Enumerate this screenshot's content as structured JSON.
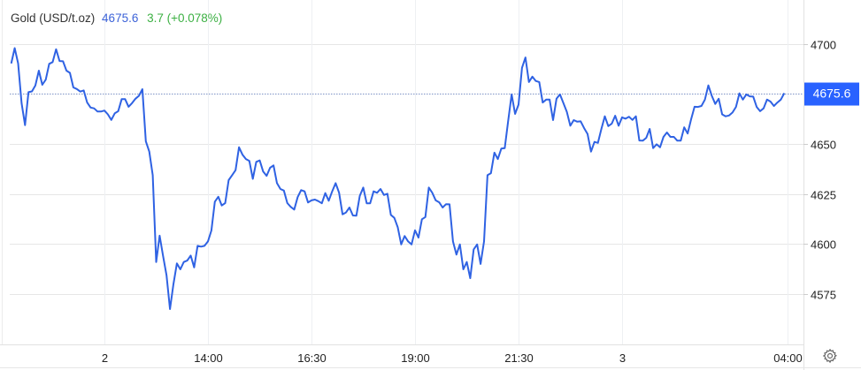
{
  "header": {
    "symbol": "Gold (USD/t.oz)",
    "price": "4675.6",
    "change": "3.7 (+0.078%)"
  },
  "colors": {
    "line": "#2f62e3",
    "price_label_bg": "#2962ff",
    "price_text": "#3d63d8",
    "change_text": "#3cb043",
    "grid": "#e6e6e6"
  },
  "settings_icon": "gear-icon",
  "chart_data": {
    "type": "line",
    "title": "",
    "xlabel": "",
    "ylabel": "",
    "ylim": [
      4549.7,
      4722.3
    ],
    "grid": true,
    "y_axis_side": "right",
    "yticks": [
      4575,
      4600,
      4625,
      4650,
      4675,
      4700
    ],
    "ytick_labels": [
      "4575",
      "4600",
      "4625",
      "4650",
      "",
      "4700"
    ],
    "xticks": [
      {
        "label": "2",
        "at": "2 11:30"
      },
      {
        "label": "14:00",
        "at": "2 14:00"
      },
      {
        "label": "16:30",
        "at": "2 16:30"
      },
      {
        "label": "19:00",
        "at": "2 19:00"
      },
      {
        "label": "21:30",
        "at": "2 21:30"
      },
      {
        "label": "3",
        "at": "3 00:00"
      },
      {
        "label": "04:00",
        "at": "3 04:00"
      }
    ],
    "last_value": 4675.6,
    "last_value_label": "4675.6",
    "x": [
      "2 09:15",
      "2 09:20",
      "2 09:25",
      "2 09:30",
      "2 09:35",
      "2 09:40",
      "2 09:45",
      "2 09:50",
      "2 09:55",
      "2 10:00",
      "2 10:05",
      "2 10:10",
      "2 10:15",
      "2 10:20",
      "2 10:25",
      "2 10:30",
      "2 10:35",
      "2 10:40",
      "2 10:45",
      "2 10:50",
      "2 10:55",
      "2 11:00",
      "2 11:05",
      "2 11:10",
      "2 11:15",
      "2 11:20",
      "2 11:25",
      "2 11:30",
      "2 11:35",
      "2 11:40",
      "2 11:45",
      "2 11:50",
      "2 11:55",
      "2 12:00",
      "2 12:05",
      "2 12:10",
      "2 12:15",
      "2 12:20",
      "2 12:25",
      "2 12:30",
      "2 12:35",
      "2 12:40",
      "2 12:45",
      "2 12:50",
      "2 12:55",
      "2 13:00",
      "2 13:05",
      "2 13:10",
      "2 13:15",
      "2 13:20",
      "2 13:25",
      "2 13:30",
      "2 13:35",
      "2 13:40",
      "2 13:45",
      "2 13:50",
      "2 13:55",
      "2 14:00",
      "2 14:05",
      "2 14:10",
      "2 14:15",
      "2 14:20",
      "2 14:25",
      "2 14:30",
      "2 14:35",
      "2 14:40",
      "2 14:45",
      "2 14:50",
      "2 14:55",
      "2 15:00",
      "2 15:05",
      "2 15:10",
      "2 15:15",
      "2 15:20",
      "2 15:25",
      "2 15:30",
      "2 15:35",
      "2 15:40",
      "2 15:45",
      "2 15:50",
      "2 15:55",
      "2 16:00",
      "2 16:05",
      "2 16:10",
      "2 16:15",
      "2 16:20",
      "2 16:25",
      "2 16:30",
      "2 16:35",
      "2 16:40",
      "2 16:45",
      "2 16:50",
      "2 16:55",
      "2 17:00",
      "2 17:05",
      "2 17:10",
      "2 17:15",
      "2 17:20",
      "2 17:25",
      "2 17:30",
      "2 17:35",
      "2 17:40",
      "2 17:45",
      "2 17:50",
      "2 17:55",
      "2 18:00",
      "2 18:05",
      "2 18:10",
      "2 18:15",
      "2 18:20",
      "2 18:25",
      "2 18:30",
      "2 18:35",
      "2 18:40",
      "2 18:45",
      "2 18:50",
      "2 18:55",
      "2 19:00",
      "2 19:05",
      "2 19:10",
      "2 19:15",
      "2 19:20",
      "2 19:25",
      "2 19:30",
      "2 19:35",
      "2 19:40",
      "2 19:45",
      "2 19:50",
      "2 19:55",
      "2 20:00",
      "2 20:05",
      "2 20:10",
      "2 20:15",
      "2 20:20",
      "2 20:25",
      "2 20:30",
      "2 20:35",
      "2 20:40",
      "2 20:45",
      "2 20:50",
      "2 20:55",
      "2 21:00",
      "2 21:05",
      "2 21:10",
      "2 21:15",
      "2 21:20",
      "2 21:25",
      "2 21:30",
      "2 21:35",
      "2 21:40",
      "2 21:45",
      "2 21:50",
      "2 21:55",
      "2 22:00",
      "2 22:05",
      "2 22:10",
      "2 22:15",
      "2 22:20",
      "2 22:25",
      "2 22:30",
      "2 22:35",
      "2 22:40",
      "2 22:45",
      "2 22:50",
      "2 22:55",
      "2 23:00",
      "2 23:05",
      "2 23:10",
      "2 23:15",
      "2 23:20",
      "2 23:25",
      "2 23:30",
      "2 23:35",
      "2 23:40",
      "2 23:45",
      "2 23:50",
      "2 23:55",
      "3 00:00",
      "3 00:05",
      "3 00:10",
      "3 00:15",
      "3 00:20",
      "3 00:25",
      "3 00:30",
      "3 00:35",
      "3 00:40",
      "3 00:45",
      "3 00:50",
      "3 00:55",
      "3 01:00",
      "3 01:05",
      "3 01:10",
      "3 01:15",
      "3 01:20",
      "3 01:25",
      "3 01:30",
      "3 01:35",
      "3 01:40",
      "3 01:45",
      "3 01:50",
      "3 01:55",
      "3 02:00",
      "3 02:05",
      "3 02:10",
      "3 02:15",
      "3 02:20",
      "3 02:25",
      "3 02:30",
      "3 02:35",
      "3 02:40",
      "3 02:45",
      "3 02:50",
      "3 02:55",
      "3 03:00",
      "3 03:05",
      "3 03:10",
      "3 03:15",
      "3 03:20",
      "3 03:25",
      "3 03:30",
      "3 03:35",
      "3 03:40",
      "3 03:45",
      "3 03:50",
      "3 03:55"
    ],
    "series": [
      {
        "values": [
          4690.5,
          4698.2,
          4690.5,
          4670.6,
          4659.6,
          4676.1,
          4676.5,
          4679.5,
          4686.9,
          4679.8,
          4682.4,
          4690.3,
          4691.2,
          4697.6,
          4691.7,
          4691.6,
          4686.9,
          4685.8,
          4678.5,
          4677.7,
          4676.4,
          4677.0,
          4670.9,
          4668.4,
          4668.0,
          4666.4,
          4666.4,
          4666.9,
          4665.0,
          4662.2,
          4665.5,
          4666.6,
          4672.6,
          4672.6,
          4668.8,
          4670.6,
          4672.8,
          4674.3,
          4677.6,
          4651.5,
          4646.3,
          4634.5,
          4591.0,
          4604.2,
          4594.0,
          4584.3,
          4567.4,
          4579.9,
          4590.3,
          4587.3,
          4591.0,
          4591.7,
          4594.2,
          4588.3,
          4599.1,
          4598.7,
          4599.1,
          4601.3,
          4606.8,
          4621.2,
          4623.7,
          4619.3,
          4620.5,
          4632.0,
          4634.5,
          4637.0,
          4648.5,
          4644.8,
          4642.6,
          4641.6,
          4632.7,
          4641.2,
          4641.9,
          4636.3,
          4634.2,
          4638.2,
          4639.4,
          4630.5,
          4627.6,
          4626.8,
          4620.5,
          4618.6,
          4617.3,
          4623.5,
          4627.0,
          4626.4,
          4620.8,
          4621.9,
          4622.3,
          4621.5,
          4620.4,
          4625.5,
          4621.7,
          4626.4,
          4630.5,
          4625.7,
          4614.9,
          4615.8,
          4618.3,
          4614.3,
          4614.2,
          4624.2,
          4628.3,
          4620.4,
          4620.4,
          4626.4,
          4625.7,
          4627.6,
          4624.6,
          4625.2,
          4614.6,
          4613.1,
          4608.4,
          4599.8,
          4604.0,
          4601.3,
          4599.8,
          4606.9,
          4603.2,
          4612.4,
          4613.5,
          4628.3,
          4625.7,
          4621.9,
          4620.9,
          4618.3,
          4620.0,
          4619.9,
          4601.3,
          4594.7,
          4599.8,
          4587.3,
          4591.0,
          4582.9,
          4597.3,
          4599.8,
          4590.0,
          4601.3,
          4634.5,
          4635.5,
          4645.8,
          4642.6,
          4647.8,
          4648.1,
          4661.8,
          4675.0,
          4665.2,
          4669.9,
          4688.3,
          4693.5,
          4681.2,
          4683.9,
          4681.7,
          4681.2,
          4670.9,
          4672.4,
          4672.4,
          4662.1,
          4672.8,
          4675.0,
          4670.6,
          4666.2,
          4659.3,
          4662.1,
          4661.3,
          4661.5,
          4658.1,
          4655.1,
          4646.3,
          4651.2,
          4650.7,
          4657.7,
          4664.0,
          4659.1,
          4660.3,
          4664.3,
          4659.3,
          4663.5,
          4662.8,
          4663.8,
          4662.2,
          4664.0,
          4651.9,
          4651.8,
          4653.2,
          4657.7,
          4648.1,
          4650.0,
          4648.5,
          4653.7,
          4655.9,
          4653.7,
          4653.7,
          4651.8,
          4651.8,
          4658.5,
          4655.4,
          4662.5,
          4668.8,
          4668.7,
          4669.2,
          4672.4,
          4679.5,
          4674.3,
          4670.2,
          4672.8,
          4665.0,
          4664.0,
          4664.4,
          4665.9,
          4668.7,
          4675.5,
          4672.4,
          4675.0,
          4674.0,
          4673.9,
          4668.7,
          4666.6,
          4668.0,
          4672.4,
          4671.4,
          4669.2,
          4670.9,
          4672.4,
          4675.6
        ]
      }
    ]
  }
}
